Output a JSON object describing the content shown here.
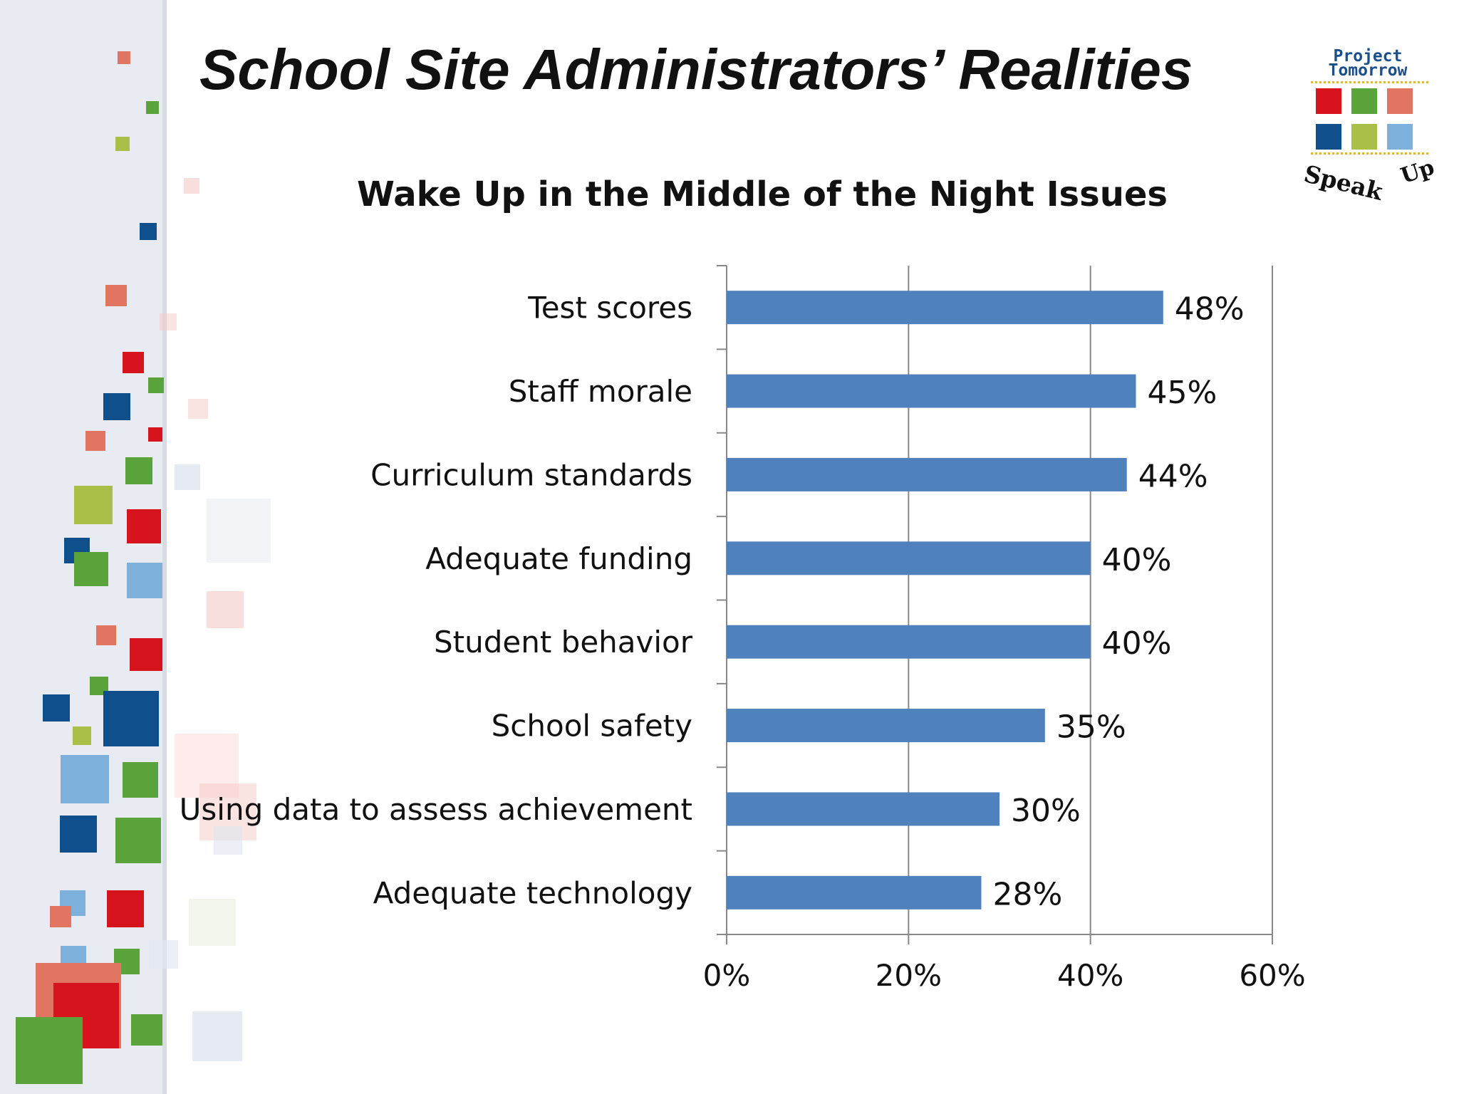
{
  "slide": {
    "title": "School Site Administrators’ Realities"
  },
  "logo": {
    "line1": "Project",
    "line2": "Tomorrow",
    "speak": "Speak",
    "up": "Up",
    "square_colors": [
      "#d7141d",
      "#5ba33b",
      "#e27562",
      "#0e4f8c",
      "#a8bf48",
      "#7eb0dc"
    ]
  },
  "theme": {
    "bar_color": "#4f81bd",
    "axis_color": "#888888",
    "grid_color": "#888888",
    "text_color": "#111111"
  },
  "chart_data": {
    "type": "bar",
    "orientation": "horizontal",
    "title": "Wake Up in the Middle of the Night Issues",
    "categories": [
      "Test scores",
      "Staff morale",
      "Curriculum standards",
      "Adequate funding",
      "Student behavior",
      "School safety",
      "Using data to assess achievement",
      "Adequate technology"
    ],
    "values": [
      48,
      45,
      44,
      40,
      40,
      35,
      30,
      28
    ],
    "value_labels": [
      "48%",
      "45%",
      "44%",
      "40%",
      "40%",
      "35%",
      "30%",
      "28%"
    ],
    "xlim": [
      0,
      60
    ],
    "x_ticks": [
      0,
      20,
      40,
      60
    ],
    "x_tick_labels": [
      "0%",
      "20%",
      "40%",
      "60%"
    ],
    "grid": true,
    "legend": "none"
  }
}
